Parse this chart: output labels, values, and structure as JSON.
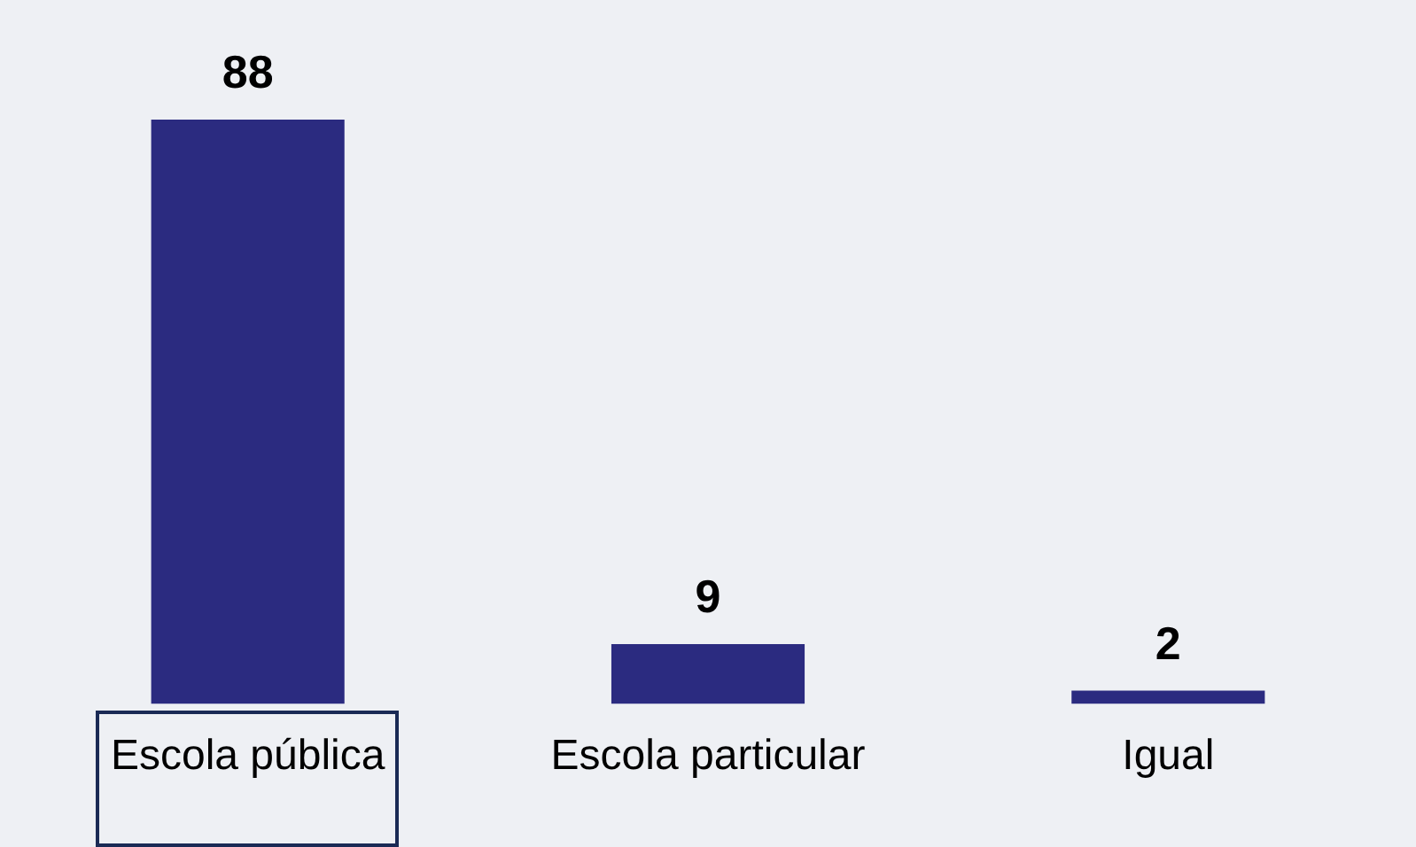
{
  "chart_data": {
    "type": "bar",
    "categories": [
      "Escola pública",
      "Escola particular",
      "Igual"
    ],
    "values": [
      88,
      9,
      2
    ],
    "color": "#2b2b80",
    "data_labels": true,
    "grid": false,
    "legend": false
  }
}
